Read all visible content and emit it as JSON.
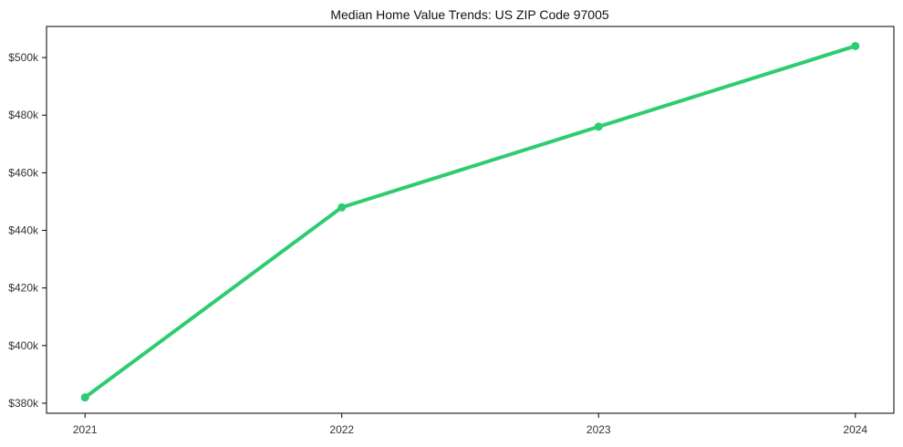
{
  "chart_data": {
    "type": "line",
    "title": "Median Home Value Trends: US ZIP Code 97005",
    "x": [
      "2021",
      "2022",
      "2023",
      "2024"
    ],
    "values": [
      382000,
      448000,
      476000,
      504000
    ],
    "ytick_values": [
      380000,
      400000,
      420000,
      440000,
      460000,
      480000,
      500000
    ],
    "ytick_labels": [
      "$380k",
      "$400k",
      "$420k",
      "$440k",
      "$460k",
      "$480k",
      "$500k"
    ],
    "ylim": [
      376500,
      510800
    ],
    "xlabel": "",
    "ylabel": "",
    "grid": false,
    "legend": "none",
    "line_color": "#2ecc71",
    "marker": "circle",
    "marker_color": "#2ecc71",
    "axis_color": "#000000",
    "tick_label_color": "#333333",
    "title_color": "#111111",
    "background": "#ffffff"
  }
}
